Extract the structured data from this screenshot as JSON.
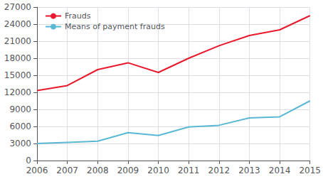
{
  "chart_data": {
    "type": "line",
    "x": [
      2006,
      2007,
      2008,
      2009,
      2010,
      2011,
      2012,
      2013,
      2014,
      2015
    ],
    "series": [
      {
        "name": "Frauds",
        "color": "#e8192c",
        "values": [
          12300,
          13200,
          16000,
          17200,
          15500,
          18000,
          20200,
          22000,
          23000,
          25500
        ]
      },
      {
        "name": "Means of payment frauds",
        "color": "#5bb8d4",
        "values": [
          3000,
          3200,
          3400,
          4900,
          4400,
          5900,
          6200,
          7500,
          7700,
          10500
        ]
      }
    ],
    "xlim": [
      2006,
      2015
    ],
    "xticks": [
      2006,
      2007,
      2008,
      2009,
      2010,
      2011,
      2012,
      2013,
      2014,
      2015
    ],
    "ylim": [
      0,
      27000
    ],
    "yticks": [
      0,
      3000,
      6000,
      9000,
      12000,
      15000,
      18000,
      21000,
      24000,
      27000
    ],
    "grid": true,
    "legend": "upper left"
  }
}
